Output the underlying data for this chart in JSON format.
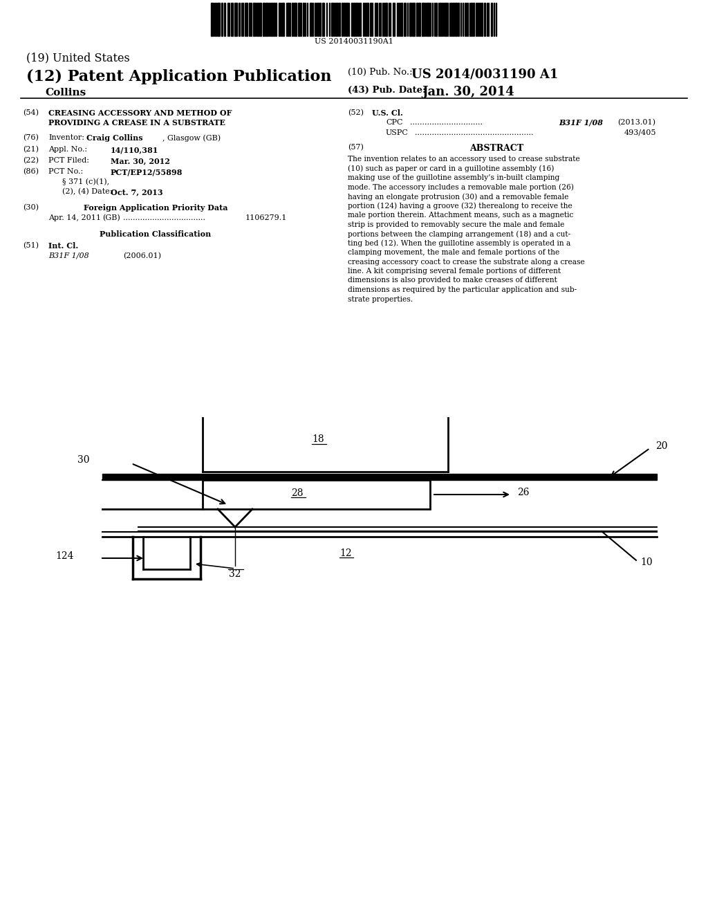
{
  "bg_color": "#ffffff",
  "barcode_text": "US 20140031190A1",
  "header": {
    "us_label": "(19) United States",
    "patent_label": "(12) Patent Application Publication",
    "inventor_surname": "Collins",
    "pub_no_label": "(10) Pub. No.:",
    "pub_no_value": "US 2014/0031190 A1",
    "pub_date_label": "(43) Pub. Date:",
    "pub_date_value": "Jan. 30, 2014"
  },
  "left_col": {
    "field54_num": "(54)",
    "field54_line1": "CREASING ACCESSORY AND METHOD OF",
    "field54_line2": "PROVIDING A CREASE IN A SUBSTRATE",
    "field76_num": "(76)",
    "field76_label": "Inventor:",
    "field76_bold": "Craig Collins",
    "field76_rest": ", Glasgow (GB)",
    "field21_num": "(21)",
    "field21_label": "Appl. No.:",
    "field21_value": "14/110,381",
    "field22_num": "(22)",
    "field22_label": "PCT Filed:",
    "field22_value": "Mar. 30, 2012",
    "field86_num": "(86)",
    "field86_label": "PCT No.:",
    "field86_value": "PCT/EP12/55898",
    "field86b": "§ 371 (c)(1),",
    "field86c": "(2), (4) Date:",
    "field86d": "Oct. 7, 2013",
    "field30_num": "(30)",
    "field30_title": "Foreign Application Priority Data",
    "field30_date": "Apr. 14, 2011",
    "field30_country": "(GB)",
    "field30_dots": "..................................",
    "field30_num_value": "1106279.1",
    "pub_class_title": "Publication Classification",
    "field51_num": "(51)",
    "field51_label": "Int. Cl.",
    "field51_class": "B31F 1/08",
    "field51_year": "(2006.01)"
  },
  "right_col": {
    "field52_num": "(52)",
    "field52_label": "U.S. Cl.",
    "field52_cpc_label": "CPC",
    "field52_cpc_dots": "..............................",
    "field52_cpc_value": "B31F 1/08",
    "field52_cpc_year": "(2013.01)",
    "field52_uspc_label": "USPC",
    "field52_uspc_dots": ".................................................",
    "field52_uspc_value": "493/405",
    "field57_num": "(57)",
    "field57_title": "ABSTRACT",
    "abstract_lines": [
      "The invention relates to an accessory used to crease substrate",
      "(10) such as paper or card in a guillotine assembly (16)",
      "making use of the guillotine assembly’s in-built clamping",
      "mode. The accessory includes a removable male portion (26)",
      "having an elongate protrusion (30) and a removable female",
      "portion (124) having a groove (32) therealong to receive the",
      "male portion therein. Attachment means, such as a magnetic",
      "strip is provided to removably secure the male and female",
      "portions between the clamping arrangement (18) and a cut-",
      "ting bed (12). When the guillotine assembly is operated in a",
      "clamping movement, the male and female portions of the",
      "creasing accessory coact to crease the substrate along a crease",
      "line. A kit comprising several female portions of different",
      "dimensions is also provided to make creases of different",
      "dimensions as required by the particular application and sub-",
      "strate properties."
    ]
  }
}
